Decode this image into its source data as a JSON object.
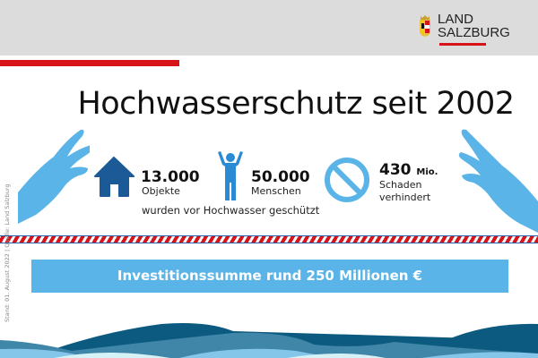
{
  "header": {
    "logo_line1": "LAND",
    "logo_line2": "SALZBURG"
  },
  "title": "Hochwasserschutz seit 2002",
  "stats": [
    {
      "icon": "house-icon",
      "value": "13.000",
      "label": "Objekte"
    },
    {
      "icon": "person-icon",
      "value": "50.000",
      "label": "Menschen"
    },
    {
      "icon": "prohibited-icon",
      "value": "430",
      "unit": "Mio.",
      "label1": "Schaden",
      "label2": "verhindert"
    }
  ],
  "protected_caption": "wurden  vor Hochwasser geschützt",
  "investment": "Investitionssumme rund 250 Millionen €",
  "side_note": "Stand: 01. August 2022 | Quelle: Land Salzburg",
  "colors": {
    "red": "#d7141a",
    "light_blue": "#5ab4e8",
    "dark_blue": "#1b5a96"
  }
}
